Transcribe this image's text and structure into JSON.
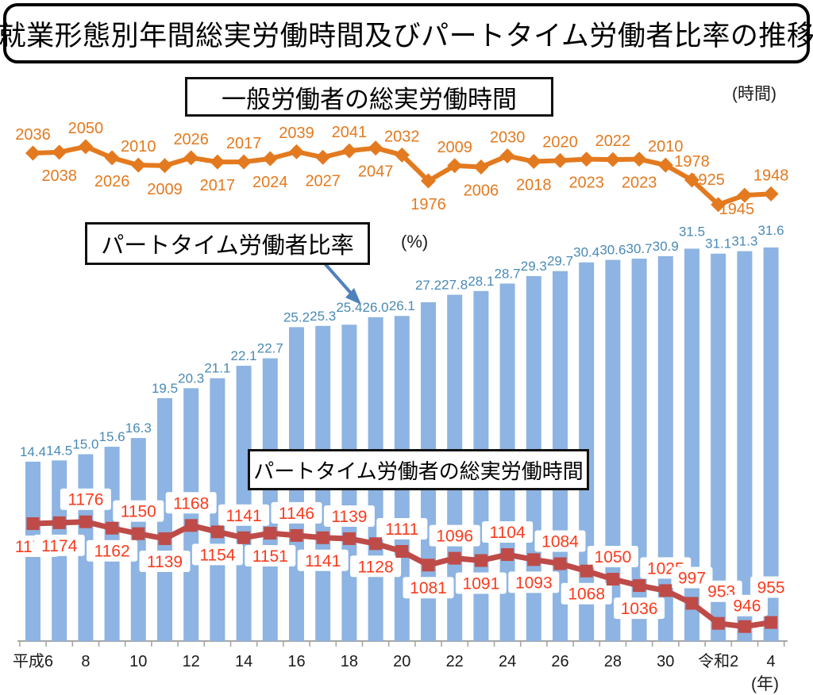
{
  "title": "就業形態別年間総実労働時間及びパートタイム労働者比率の推移",
  "units": {
    "hours": "(時間)",
    "percent": "(%)",
    "year": "(年)"
  },
  "legend": {
    "general_workers": "一般労働者の総実労働時間",
    "parttime_ratio": "パートタイム労働者比率",
    "parttime_hours": "パートタイム労働者の総実労働時間"
  },
  "colors": {
    "orange_line": "#E37A1F",
    "orange_label": "#E37A1F",
    "bar_fill": "#8DB4E2",
    "bar_label": "#4A8AB5",
    "red_line": "#BE4B48",
    "red_label": "#F93B1D",
    "navy_text": "#1F3864",
    "arrow": "#4F81BD",
    "axis": "#A6A6A6",
    "tick_text": "#1a1a1a"
  },
  "chart_data": {
    "type": "bar",
    "subtype": "combo bar + two labeled lines",
    "x_axis": {
      "tick_labels": [
        "平成6",
        "8",
        "10",
        "12",
        "14",
        "16",
        "18",
        "20",
        "22",
        "24",
        "26",
        "28",
        "30",
        "令和2",
        "4"
      ],
      "ticks_every_n_categories": 2,
      "n_categories": 29,
      "unit": "年"
    },
    "grid": "off",
    "legend_position": "floating boxes",
    "series": [
      {
        "name": "一般労働者の総実労働時間",
        "type": "line",
        "unit": "時間",
        "marker": "diamond",
        "values": [
          2036,
          2038,
          2050,
          2026,
          2010,
          2009,
          2026,
          2017,
          2017,
          2024,
          2039,
          2027,
          2041,
          2047,
          2032,
          1976,
          2009,
          2006,
          2030,
          2018,
          2020,
          2023,
          2022,
          2023,
          2010,
          1978,
          1925,
          1945,
          1948
        ],
        "label_side": [
          "above",
          "below",
          "above",
          "below",
          "above",
          "below",
          "above",
          "below",
          "above",
          "below",
          "above",
          "below",
          "above",
          "below",
          "above",
          "below",
          "above",
          "below",
          "above",
          "below",
          "above",
          "below",
          "above",
          "below",
          "above",
          "above",
          "above",
          "below",
          "above"
        ]
      },
      {
        "name": "パートタイム労働者比率",
        "type": "bar",
        "unit": "%",
        "values": [
          14.4,
          14.5,
          15.0,
          15.6,
          16.3,
          19.5,
          20.3,
          21.1,
          22.1,
          22.7,
          25.2,
          25.3,
          25.4,
          26.0,
          26.1,
          27.2,
          27.8,
          28.1,
          28.7,
          29.3,
          29.7,
          30.4,
          30.6,
          30.7,
          30.9,
          31.5,
          31.1,
          31.3,
          31.6
        ]
      },
      {
        "name": "パートタイム労働者の総実労働時間",
        "type": "line",
        "unit": "時間",
        "marker": "square",
        "values": [
          1172,
          1174,
          1176,
          1162,
          1150,
          1139,
          1168,
          1154,
          1141,
          1151,
          1146,
          1141,
          1139,
          1128,
          1111,
          1081,
          1096,
          1091,
          1104,
          1093,
          1084,
          1068,
          1050,
          1036,
          1025,
          997,
          953,
          946,
          955
        ],
        "label_side": [
          "below",
          "below",
          "above",
          "below",
          "above",
          "below",
          "above",
          "below",
          "above",
          "below",
          "above",
          "below",
          "above",
          "below",
          "above",
          "below",
          "above",
          "below",
          "above",
          "below",
          "above",
          "below",
          "above",
          "below",
          "above",
          "above",
          "above",
          "above",
          "above"
        ]
      }
    ]
  }
}
